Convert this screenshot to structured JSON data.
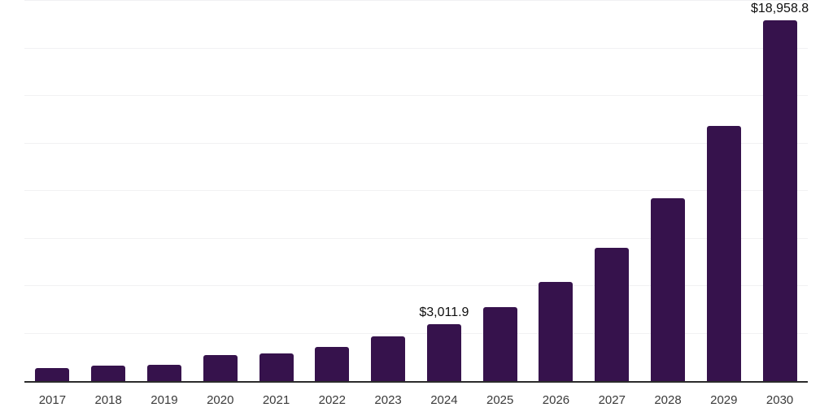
{
  "chart": {
    "background_color": "#ffffff",
    "bar_color": "#36124C",
    "gridline_color": "#f1f1f3",
    "axis_line_color": "#2b2b2b",
    "tick_label_color": "#3a3a3a",
    "value_label_color": "#0e0e0e"
  },
  "chart_data": {
    "type": "bar",
    "title": "",
    "xlabel": "",
    "ylabel": "",
    "categories": [
      "2017",
      "2018",
      "2019",
      "2020",
      "2021",
      "2022",
      "2023",
      "2024",
      "2025",
      "2026",
      "2027",
      "2028",
      "2029",
      "2030"
    ],
    "values": [
      700,
      810,
      845,
      1350,
      1470,
      1780,
      2330,
      3011.9,
      3880,
      5210,
      7010,
      9610,
      13420,
      18958.8
    ],
    "value_labels": [
      {
        "category": "2024",
        "text": "$3,011.9"
      },
      {
        "category": "2030",
        "text": "$18,958.8"
      }
    ],
    "ylim": [
      0,
      20000
    ],
    "gridline_step": 2500,
    "grid": true,
    "legend": false,
    "y_axis_ticks_visible": false,
    "units_hint": "currency"
  }
}
